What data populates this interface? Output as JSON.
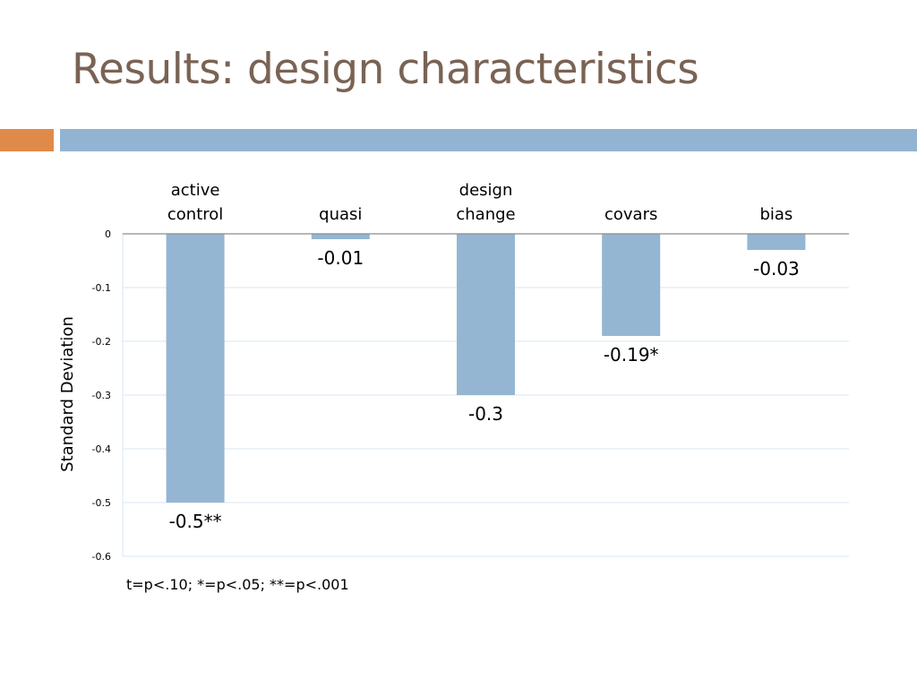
{
  "slide": {
    "title": "Results: design characteristics",
    "footnote": "t=p<.10; *=p<.05; **=p<.001"
  },
  "colors": {
    "title": "#7a6354",
    "accent_orange": "#e08a4a",
    "accent_blue": "#92b4d2",
    "bar": "#94b6d2",
    "gridline": "#d9e6f1",
    "axis": "#8c8c8c"
  },
  "chart_data": {
    "type": "bar",
    "categories": [
      [
        "active",
        "control"
      ],
      [
        "quasi"
      ],
      [
        "design",
        "change"
      ],
      [
        "covars"
      ],
      [
        "bias"
      ]
    ],
    "values": [
      -0.5,
      -0.01,
      -0.3,
      -0.19,
      -0.03
    ],
    "data_labels": [
      "-0.5**",
      "-0.01",
      "-0.3",
      "-0.19*",
      "-0.03"
    ],
    "ylabel": "Standard Deviation",
    "ylim": [
      -0.6,
      0
    ],
    "y_ticks": [
      0,
      -0.1,
      -0.2,
      -0.3,
      -0.4,
      -0.5,
      -0.6
    ],
    "y_tick_labels": [
      "0",
      "-0.1",
      "-0.2",
      "-0.3",
      "-0.4",
      "-0.5",
      "-0.6"
    ],
    "category_axis_position": "top",
    "grid": true,
    "legend": false
  }
}
